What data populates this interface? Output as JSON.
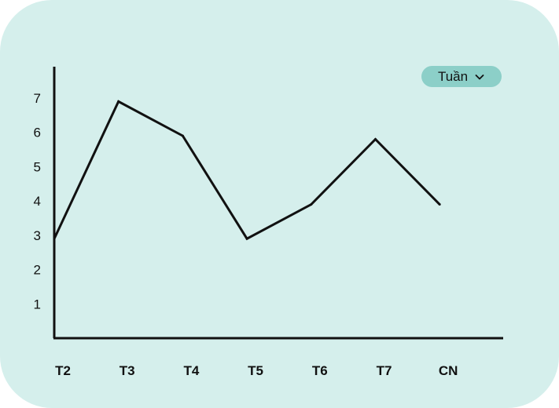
{
  "colors": {
    "card_background": "#d5efec",
    "dropdown_background": "#8ccfc8",
    "line": "#111111",
    "axis": "#111111"
  },
  "period_selector": {
    "label": "Tuần",
    "icon": "chevron-down-icon"
  },
  "chart_data": {
    "type": "line",
    "categories": [
      "T2",
      "T3",
      "T4",
      "T5",
      "T6",
      "T7",
      "CN"
    ],
    "series": [
      {
        "values": [
          2.9,
          6.9,
          5.9,
          2.9,
          3.9,
          5.8,
          3.9
        ]
      }
    ],
    "yticks": [
      1,
      2,
      3,
      4,
      5,
      6,
      7
    ],
    "ylim": [
      0,
      7.7
    ],
    "grid": false,
    "legend": "none",
    "title": "",
    "xlabel": "",
    "ylabel": ""
  }
}
